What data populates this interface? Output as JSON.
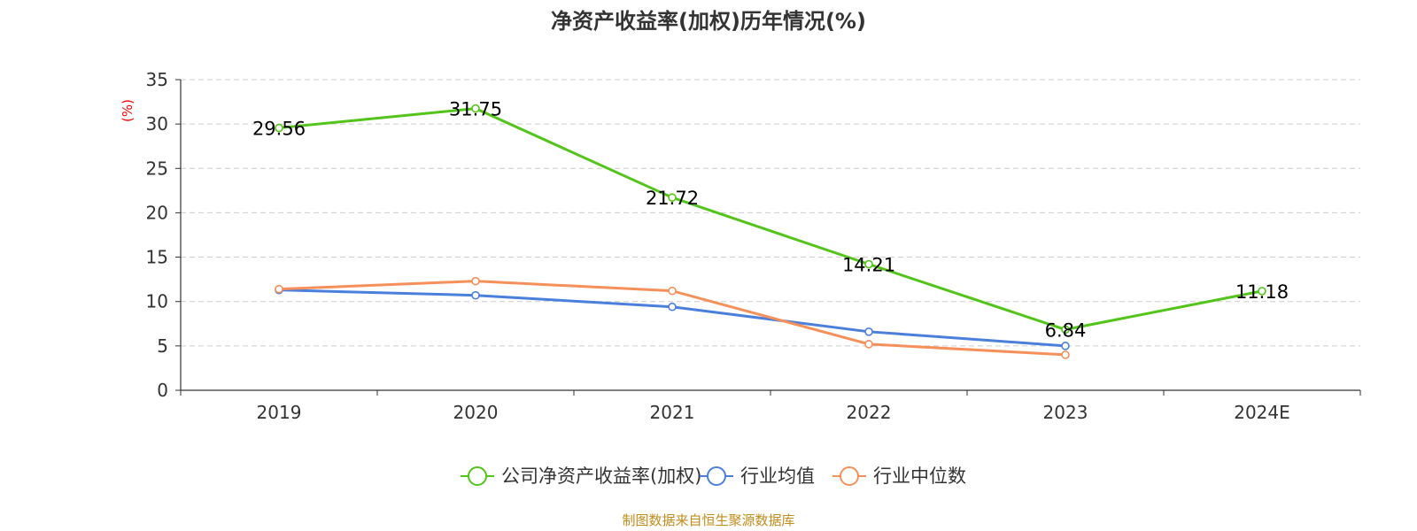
{
  "chart_data": {
    "type": "line",
    "title": "净资产收益率(加权)历年情况(%)",
    "ylabel": "(%)",
    "categories": [
      "2019",
      "2020",
      "2021",
      "2022",
      "2023",
      "2024E"
    ],
    "ylim": [
      0,
      35
    ],
    "yticks": [
      0,
      5,
      10,
      15,
      20,
      25,
      30,
      35
    ],
    "grid": true,
    "legend_position": "bottom",
    "series": [
      {
        "name": "公司净资产收益率(加权)",
        "color": "#52c41a",
        "values": [
          29.56,
          31.75,
          21.72,
          14.21,
          6.84,
          11.18
        ],
        "labels": [
          "29.56",
          "31.75",
          "21.72",
          "14.21",
          "6.84",
          "11.18"
        ]
      },
      {
        "name": "行业均值",
        "color": "#4a7fdc",
        "values": [
          11.3,
          10.7,
          9.4,
          6.6,
          5.0,
          null
        ]
      },
      {
        "name": "行业中位数",
        "color": "#f5905a",
        "values": [
          11.4,
          12.3,
          11.2,
          5.2,
          4.0,
          null
        ]
      }
    ],
    "source": "制图数据来自恒生聚源数据库"
  }
}
